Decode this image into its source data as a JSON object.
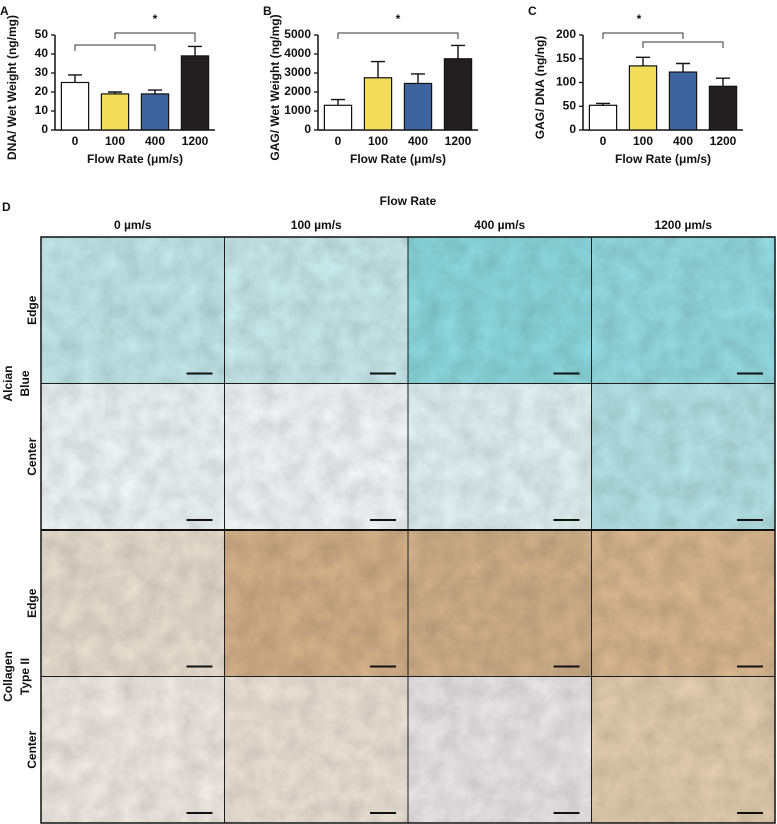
{
  "chart_data": [
    {
      "type": "bar",
      "label": "A",
      "y_label": "DNA/ Wet Weight (ng/mg)",
      "x_label": "Flow Rate (μm/s)",
      "categories": [
        "0",
        "100",
        "400",
        "1200"
      ],
      "values": [
        25,
        19,
        19,
        39
      ],
      "errors": [
        4,
        1,
        2,
        5
      ],
      "colors": [
        "#ffffff",
        "#f2dc5a",
        "#3e64a0",
        "#231f20"
      ],
      "ylim": [
        0,
        50
      ],
      "yticks": [
        0,
        10,
        20,
        30,
        40,
        50
      ],
      "annotation": "*"
    },
    {
      "type": "bar",
      "label": "B",
      "y_label": "GAG/ Wet Weight (ng/mg)",
      "x_label": "Flow Rate (μm/s)",
      "categories": [
        "0",
        "100",
        "400",
        "1200"
      ],
      "values": [
        1300,
        2750,
        2450,
        3750
      ],
      "errors": [
        300,
        850,
        500,
        700
      ],
      "colors": [
        "#ffffff",
        "#f2dc5a",
        "#3e64a0",
        "#231f20"
      ],
      "ylim": [
        0,
        5000
      ],
      "yticks": [
        0,
        1000,
        2000,
        3000,
        4000,
        5000
      ],
      "annotation": "*"
    },
    {
      "type": "bar",
      "label": "C",
      "y_label": "GAG/ DNA (ng/ng)",
      "x_label": "Flow Rate (μm/s)",
      "categories": [
        "0",
        "100",
        "400",
        "1200"
      ],
      "values": [
        52,
        135,
        122,
        92
      ],
      "errors": [
        4,
        18,
        18,
        17
      ],
      "colors": [
        "#ffffff",
        "#f2dc5a",
        "#3e64a0",
        "#231f20"
      ],
      "ylim": [
        0,
        200
      ],
      "yticks": [
        0,
        50,
        100,
        150,
        200
      ],
      "annotation": "*"
    }
  ],
  "panel_d": {
    "label": "D",
    "title": "Flow Rate",
    "columns": [
      "0 µm/s",
      "100 µm/s",
      "400 µm/s",
      "1200 µm/s"
    ],
    "groups": [
      {
        "name_lines": [
          "Alcian",
          "Blue"
        ],
        "rows": [
          "Edge",
          "Center"
        ]
      },
      {
        "name_lines": [
          "Collagen",
          "Type II"
        ],
        "rows": [
          "Edge",
          "Center"
        ]
      }
    ]
  }
}
